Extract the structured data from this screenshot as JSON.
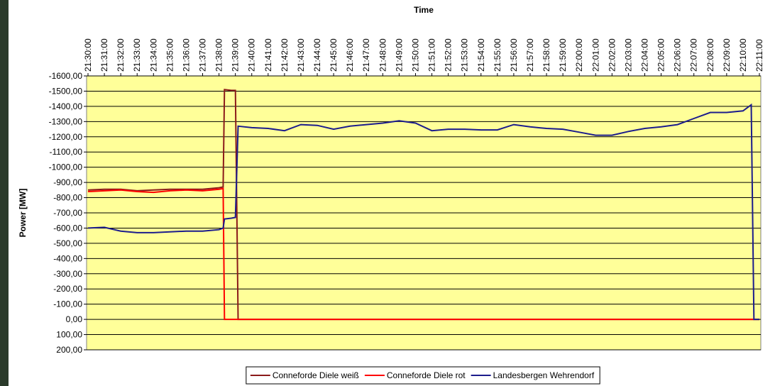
{
  "chart_data": {
    "type": "line",
    "x_label": "Time",
    "y_label": "Power [MW]",
    "x": [
      "21:30:00",
      "21:31:00",
      "21:32:00",
      "21:33:00",
      "21:34:00",
      "21:35:00",
      "21:36:00",
      "21:37:00",
      "21:38:00",
      "21:38:15",
      "21:38:20",
      "21:38:45",
      "21:39:00",
      "21:39:10",
      "21:40:00",
      "21:41:00",
      "21:42:00",
      "21:43:00",
      "21:44:00",
      "21:45:00",
      "21:46:00",
      "21:47:00",
      "21:48:00",
      "21:49:00",
      "21:50:00",
      "21:51:00",
      "21:52:00",
      "21:53:00",
      "21:54:00",
      "21:55:00",
      "21:56:00",
      "21:57:00",
      "21:58:00",
      "21:59:00",
      "22:00:00",
      "22:01:00",
      "22:02:00",
      "22:03:00",
      "22:04:00",
      "22:05:00",
      "22:06:00",
      "22:07:00",
      "22:08:00",
      "22:09:00",
      "22:10:00",
      "22:10:30",
      "22:10:40",
      "22:11:00"
    ],
    "series": [
      {
        "name": "Conneforde Diele weiß",
        "color": "#8b1a1a",
        "values": [
          -850,
          -855,
          -855,
          -845,
          -850,
          -855,
          -855,
          -855,
          -865,
          -870,
          -1510,
          -1505,
          -1505,
          0,
          0,
          0,
          0,
          0,
          0,
          0,
          0,
          0,
          0,
          0,
          0,
          0,
          0,
          0,
          0,
          0,
          0,
          0,
          0,
          0,
          0,
          0,
          0,
          0,
          0,
          0,
          0,
          0,
          0,
          0,
          0,
          0,
          0,
          0
        ]
      },
      {
        "name": "Conneforde Diele rot",
        "color": "#ff0000",
        "values": [
          -840,
          -845,
          -850,
          -840,
          -835,
          -845,
          -850,
          -845,
          -855,
          -860,
          0,
          0,
          0,
          0,
          0,
          0,
          0,
          0,
          0,
          0,
          0,
          0,
          0,
          0,
          0,
          0,
          0,
          0,
          0,
          0,
          0,
          0,
          0,
          0,
          0,
          0,
          0,
          0,
          0,
          0,
          0,
          0,
          0,
          0,
          0,
          0,
          0,
          0
        ]
      },
      {
        "name": "Landesbergen Wehrendorf",
        "color": "#1c1c8c",
        "values": [
          -600,
          -605,
          -580,
          -570,
          -570,
          -575,
          -580,
          -580,
          -590,
          -600,
          -660,
          -665,
          -670,
          -1270,
          -1260,
          -1255,
          -1240,
          -1280,
          -1275,
          -1250,
          -1270,
          -1280,
          -1290,
          -1305,
          -1290,
          -1240,
          -1250,
          -1250,
          -1245,
          -1245,
          -1280,
          -1265,
          -1255,
          -1250,
          -1230,
          -1210,
          -1210,
          -1235,
          -1255,
          -1265,
          -1280,
          -1320,
          -1360,
          -1360,
          -1370,
          -1410,
          0,
          0
        ]
      }
    ],
    "xlim": [
      "21:30:00",
      "22:11:00"
    ],
    "xticks": [
      "21:30:00",
      "21:31:00",
      "21:32:00",
      "21:33:00",
      "21:34:00",
      "21:35:00",
      "21:36:00",
      "21:37:00",
      "21:38:00",
      "21:39:00",
      "21:40:00",
      "21:41:00",
      "21:42:00",
      "21:43:00",
      "21:44:00",
      "21:45:00",
      "21:46:00",
      "21:47:00",
      "21:48:00",
      "21:49:00",
      "21:50:00",
      "21:51:00",
      "21:52:00",
      "21:53:00",
      "21:54:00",
      "21:55:00",
      "21:56:00",
      "21:57:00",
      "21:58:00",
      "21:59:00",
      "22:00:00",
      "22:01:00",
      "22:02:00",
      "22:03:00",
      "22:04:00",
      "22:05:00",
      "22:06:00",
      "22:07:00",
      "22:08:00",
      "22:09:00",
      "22:10:00",
      "22:11:00"
    ],
    "ylim": [
      200,
      -1600
    ],
    "yticks": [
      {
        "value": -1600,
        "label": "-1600,00"
      },
      {
        "value": -1500,
        "label": "-1500,00"
      },
      {
        "value": -1400,
        "label": "-1400,00"
      },
      {
        "value": -1300,
        "label": "-1300,00"
      },
      {
        "value": -1200,
        "label": "-1200,00"
      },
      {
        "value": -1100,
        "label": "-1100,00"
      },
      {
        "value": -1000,
        "label": "-1000,00"
      },
      {
        "value": -900,
        "label": "-900,00"
      },
      {
        "value": -800,
        "label": "-800,00"
      },
      {
        "value": -700,
        "label": "-700,00"
      },
      {
        "value": -600,
        "label": "-600,00"
      },
      {
        "value": -500,
        "label": "-500,00"
      },
      {
        "value": -400,
        "label": "-400,00"
      },
      {
        "value": -300,
        "label": "-300,00"
      },
      {
        "value": -200,
        "label": "-200,00"
      },
      {
        "value": -100,
        "label": "-100,00"
      },
      {
        "value": 0,
        "label": "0,00"
      },
      {
        "value": 100,
        "label": "100,00"
      },
      {
        "value": 200,
        "label": "200,00"
      }
    ],
    "grid": true,
    "plot_background": "#ffff99",
    "legend": "bottom"
  }
}
